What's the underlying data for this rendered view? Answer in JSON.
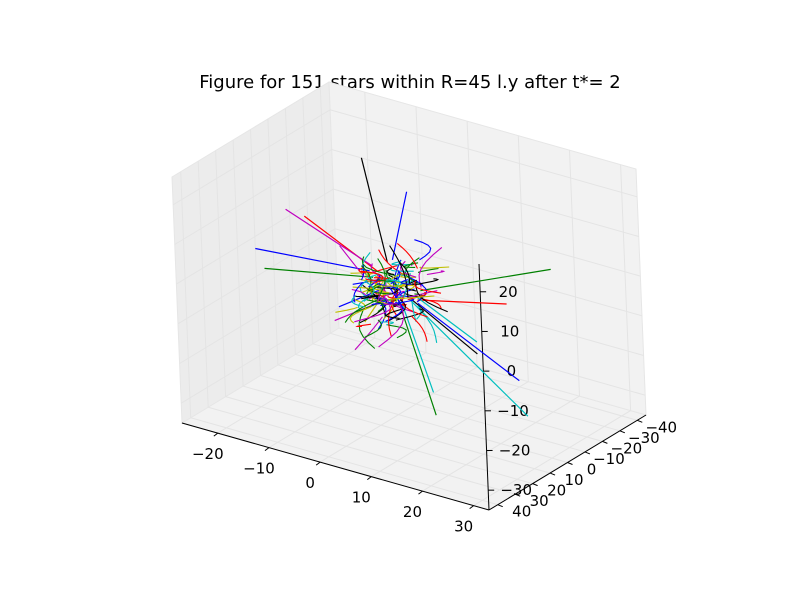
{
  "chart_data": {
    "type": "line",
    "projection": "3d",
    "title": "Figure for 151 stars within R=45 l.y after t*= 2",
    "xlabel": "",
    "ylabel": "",
    "zlabel": "",
    "xlim": [
      -27,
      33
    ],
    "ylim": [
      -45,
      45
    ],
    "zlim": [
      -35,
      27
    ],
    "xticks": [
      "−20",
      "−10",
      "0",
      "10",
      "20",
      "30"
    ],
    "yticks": [
      "−40",
      "−30",
      "−20",
      "−10",
      "0",
      "10",
      "20",
      "30",
      "40"
    ],
    "zticks": [
      "−30",
      "−20",
      "−10",
      "0",
      "10",
      "20"
    ],
    "grid": true,
    "legend": "none",
    "star_count": 151,
    "trajectory_colors": [
      "#0000ff",
      "#008000",
      "#ff0000",
      "#00bfbf",
      "#bf00bf",
      "#bfbf00",
      "#000000"
    ],
    "series": [
      {
        "color": "#0000ff",
        "x": [
          -6,
          -27
        ],
        "y": [
          -4,
          0
        ],
        "z": [
          -2,
          -3
        ]
      },
      {
        "color": "#008000",
        "x": [
          -5,
          -25
        ],
        "y": [
          -3,
          1
        ],
        "z": [
          -3,
          -7
        ]
      },
      {
        "color": "#008000",
        "x": [
          6,
          33
        ],
        "y": [
          2,
          5
        ],
        "z": [
          -1,
          15
        ]
      },
      {
        "color": "#ff0000",
        "x": [
          5,
          24
        ],
        "y": [
          1,
          5
        ],
        "z": [
          -4,
          3
        ]
      },
      {
        "color": "#000000",
        "x": [
          -1,
          -6
        ],
        "y": [
          0,
          -2
        ],
        "z": [
          3,
          27
        ]
      },
      {
        "color": "#0000ff",
        "x": [
          0,
          3
        ],
        "y": [
          0,
          -1
        ],
        "z": [
          4,
          22
        ]
      },
      {
        "color": "#00bfbf",
        "x": [
          2,
          22
        ],
        "y": [
          -3,
          -10
        ],
        "z": [
          -6,
          -30
        ]
      },
      {
        "color": "#008000",
        "x": [
          0,
          6
        ],
        "y": [
          -2,
          -4
        ],
        "z": [
          -6,
          -34
        ]
      },
      {
        "color": "#bf00bf",
        "x": [
          -3,
          -14
        ],
        "y": [
          -2,
          -6
        ],
        "z": [
          -8,
          -18
        ]
      },
      {
        "color": "#0000ff",
        "x": [
          4,
          22
        ],
        "y": [
          -2,
          -6
        ],
        "z": [
          -6,
          -20
        ]
      },
      {
        "color": "#00bfbf",
        "x": [
          4,
          15
        ],
        "y": [
          -1,
          -3
        ],
        "z": [
          -4,
          -12
        ]
      },
      {
        "color": "#000000",
        "x": [
          3,
          15
        ],
        "y": [
          -1,
          -3
        ],
        "z": [
          -5,
          -15
        ]
      },
      {
        "color": "#ff0000",
        "x": [
          -3,
          -16
        ],
        "y": [
          0,
          3
        ],
        "z": [
          0,
          10
        ]
      },
      {
        "color": "#bf00bf",
        "x": [
          -4,
          -20
        ],
        "y": [
          0,
          2
        ],
        "z": [
          1,
          10
        ]
      },
      {
        "color": "#00bfbf",
        "x": [
          1,
          6
        ],
        "y": [
          -1,
          -3
        ],
        "z": [
          -6,
          -28
        ]
      },
      {
        "color": "#bfbf00",
        "x": [
          -2,
          -7
        ],
        "y": [
          -1,
          -3
        ],
        "z": [
          -5,
          -15
        ]
      },
      {
        "color": "#0000ff",
        "x": [
          -2,
          -12
        ],
        "y": [
          -1,
          -3
        ],
        "z": [
          -4,
          -13
        ]
      }
    ]
  }
}
